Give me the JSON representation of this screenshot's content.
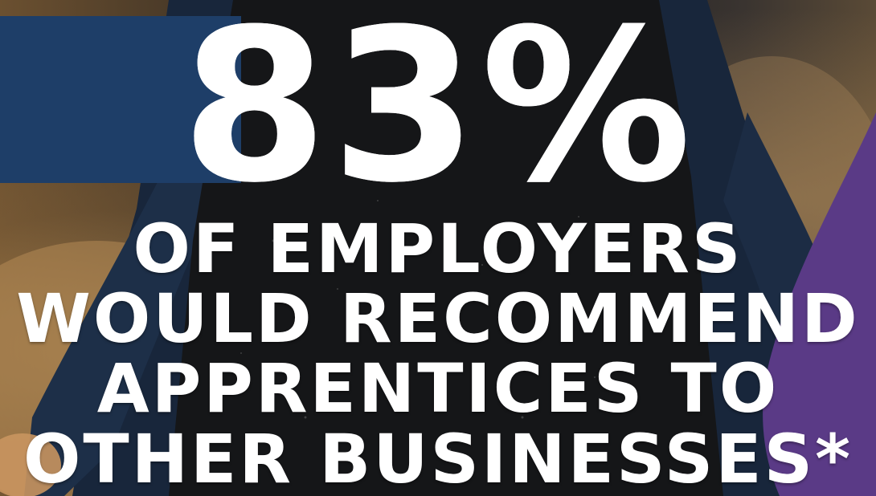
{
  "headline": {
    "percentage": "83%",
    "lines": [
      "OF EMPLOYERS",
      "WOULD RECOMMEND",
      "APPRENTICES TO",
      "OTHER BUSINESSES*"
    ]
  },
  "colors": {
    "text": "#ffffff",
    "blue_band": "#1e3e68",
    "purple_accent": "#5a3a86"
  }
}
